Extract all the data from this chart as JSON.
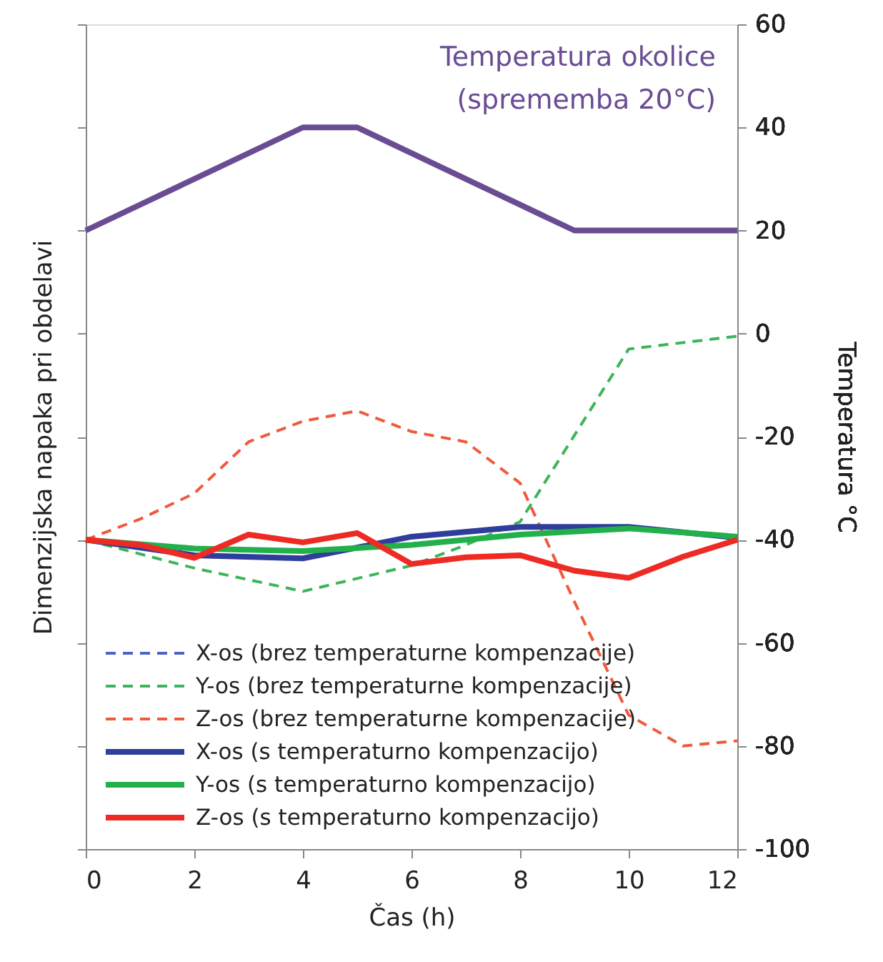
{
  "chart_data": {
    "type": "line",
    "xlabel": "Čas (h)",
    "ylabel": "Dimenzijska napaka pri obdelavi",
    "y2label": "Temperatura °C",
    "xlim": [
      0,
      12
    ],
    "xticks": [
      0,
      2,
      4,
      6,
      8,
      10,
      12
    ],
    "ylim": [
      -100,
      60
    ],
    "yticks": [
      -100,
      -80,
      -60,
      -40,
      -20,
      0,
      20,
      40,
      60
    ],
    "grid": false,
    "legend": "bottom left",
    "marker": "none",
    "series": [
      {
        "name": "Temperatura okolice (sprememba 20°C)",
        "color": "#6a4c93",
        "line_style": "solid",
        "x": [
          0,
          4,
          5,
          9,
          12
        ],
        "values": [
          20,
          40,
          40,
          20,
          20
        ]
      },
      {
        "name": "X-os (brez temperaturne kompenzacije)",
        "color": "#4f63c0",
        "line_style": "dashed"
      },
      {
        "name": "Y-os (brez temperaturne kompenzacije)",
        "color": "#3cb55a",
        "line_style": "dashed",
        "x": [
          0,
          2,
          4,
          6,
          7,
          8,
          10,
          12
        ],
        "values": [
          -40,
          -45.5,
          -50,
          -45,
          -41,
          -36.5,
          -3,
          -0.5
        ]
      },
      {
        "name": "Z-os (brez temperaturne kompenzacije)",
        "color": "#f05a3c",
        "line_style": "dashed",
        "x": [
          0,
          1,
          2,
          3,
          4,
          5,
          6,
          7,
          8,
          9,
          10,
          11,
          12
        ],
        "values": [
          -40,
          -36,
          -31,
          -21,
          -17,
          -15,
          -19,
          -21,
          -29,
          -52,
          -74,
          -80,
          -79
        ]
      },
      {
        "name": "X-os (s temperaturno kompenzacijo)",
        "color": "#2e3e9a",
        "line_style": "solid",
        "x": [
          0,
          2,
          4,
          6,
          8,
          10,
          12
        ],
        "values": [
          -40,
          -43,
          -43.6,
          -39.4,
          -37.5,
          -37.5,
          -39.6
        ]
      },
      {
        "name": "Y-os (s temperaturno kompenzacijo)",
        "color": "#22b04b",
        "line_style": "solid",
        "x": [
          0,
          2,
          4,
          6,
          8,
          10,
          12
        ],
        "values": [
          -40,
          -41.7,
          -42.2,
          -41,
          -39,
          -37.8,
          -39.4
        ]
      },
      {
        "name": "Z-os (s temperaturno kompenzacijo)",
        "color": "#ee2a24",
        "line_style": "solid",
        "x": [
          0,
          1,
          2,
          3,
          4,
          5,
          6,
          7,
          8,
          9,
          10,
          11,
          12
        ],
        "values": [
          -40,
          -41,
          -43.5,
          -39,
          -40.5,
          -38.7,
          -44.7,
          -43.4,
          -43,
          -46,
          -47.4,
          -43.3,
          -40
        ]
      }
    ]
  }
}
